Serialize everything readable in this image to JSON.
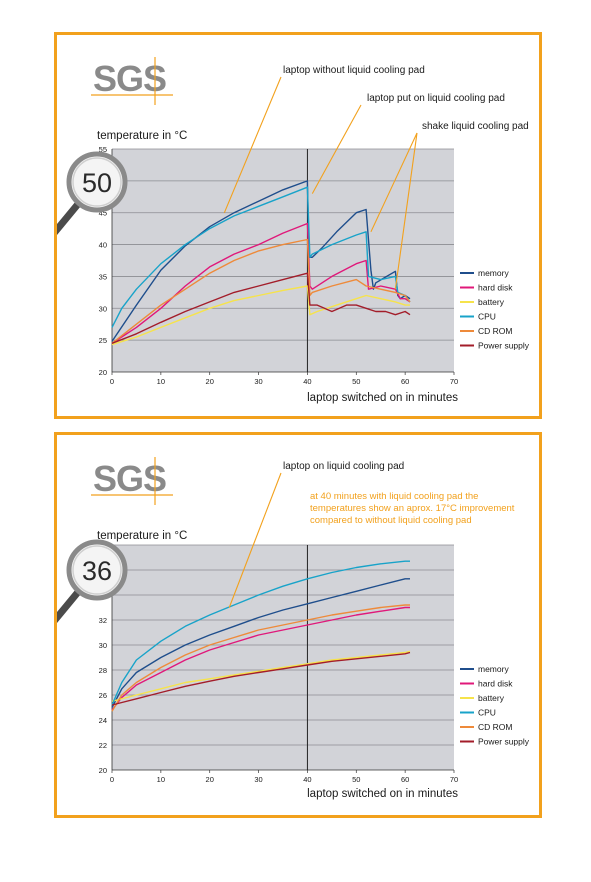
{
  "colors": {
    "frame": "#f2a11d",
    "plot_bg": "#d2d3d8",
    "annotation_line": "#f2a11d",
    "note_text": "#f2a11d",
    "series": {
      "memory": "#1f4e8c",
      "hard disk": "#e0187a",
      "battery": "#f6e34b",
      "CPU": "#18a3c9",
      "CD ROM": "#ee8a3a",
      "Power supply": "#a31d2a"
    }
  },
  "icons": [
    "magnifier-icon"
  ],
  "chart_data": [
    {
      "type": "line",
      "logo": "SGS",
      "magnifier_value": "50",
      "ylabel": "temperature in °C",
      "xlabel": "laptop switched on in minutes",
      "xlim": [
        0,
        70
      ],
      "ylim": [
        20,
        55
      ],
      "xticks": [
        0,
        10,
        20,
        30,
        40,
        50,
        60,
        70
      ],
      "yticks": [
        20,
        25,
        30,
        35,
        40,
        45,
        50,
        55
      ],
      "grid": true,
      "vline_x": 40,
      "legend": "right",
      "annotations": [
        {
          "text": "laptop without liquid cooling pad",
          "target": [
            23,
            45
          ]
        },
        {
          "text": "laptop put on liquid cooling pad",
          "target": [
            41,
            48
          ]
        },
        {
          "text": "shake liquid cooling pad",
          "target": [
            53,
            42
          ]
        },
        {
          "text": "",
          "target": [
            58,
            33
          ]
        }
      ],
      "series": [
        {
          "name": "memory",
          "x": [
            0,
            5,
            10,
            15,
            20,
            25,
            30,
            35,
            40,
            40.3,
            41,
            43,
            46,
            50,
            52,
            53,
            53.5,
            54,
            58,
            58.5,
            59,
            60,
            61
          ],
          "y": [
            24.8,
            30.5,
            36.0,
            39.8,
            42.8,
            45.0,
            46.8,
            48.6,
            50.0,
            38.0,
            38.0,
            39.5,
            42.0,
            45.0,
            45.5,
            36.0,
            33.0,
            34.0,
            35.8,
            32.0,
            31.5,
            32.0,
            31.5
          ]
        },
        {
          "name": "hard disk",
          "x": [
            0,
            5,
            10,
            15,
            20,
            25,
            30,
            35,
            40,
            40.5,
            41,
            45,
            50,
            52,
            52.5,
            55,
            58,
            59,
            60,
            61
          ],
          "y": [
            24.5,
            27.0,
            30.0,
            33.5,
            36.5,
            38.5,
            40.0,
            41.8,
            43.3,
            33.5,
            33.0,
            35.0,
            37.0,
            37.5,
            33.0,
            33.5,
            33.0,
            31.5,
            31.5,
            31.0
          ]
        },
        {
          "name": "battery",
          "x": [
            0,
            5,
            10,
            15,
            20,
            25,
            30,
            35,
            40,
            40.5,
            42,
            46,
            50,
            52,
            55,
            58,
            60,
            61
          ],
          "y": [
            24.3,
            25.5,
            27.0,
            28.5,
            30.0,
            31.2,
            32.0,
            32.8,
            33.5,
            29.0,
            29.5,
            30.5,
            31.5,
            32.0,
            31.5,
            31.0,
            30.5,
            30.5
          ]
        },
        {
          "name": "CPU",
          "x": [
            0,
            2,
            5,
            10,
            15,
            20,
            25,
            30,
            35,
            40,
            40.5,
            41,
            45,
            50,
            52,
            52.5,
            55,
            58,
            58.5,
            60,
            61
          ],
          "y": [
            27.0,
            30.0,
            33.0,
            37.0,
            40.0,
            42.5,
            44.5,
            46.0,
            47.5,
            49.0,
            38.0,
            38.5,
            40.0,
            41.5,
            42.0,
            35.0,
            34.5,
            35.0,
            32.5,
            32.0,
            31.0
          ]
        },
        {
          "name": "CD ROM",
          "x": [
            0,
            5,
            10,
            15,
            20,
            25,
            30,
            35,
            40,
            40.5,
            41,
            45,
            50,
            52,
            55,
            58,
            60,
            61
          ],
          "y": [
            24.5,
            27.5,
            30.5,
            33.0,
            35.5,
            37.5,
            39.0,
            40.0,
            40.8,
            32.0,
            32.5,
            33.5,
            34.5,
            33.5,
            33.0,
            32.5,
            32.0,
            31.0
          ]
        },
        {
          "name": "Power supply",
          "x": [
            0,
            5,
            10,
            15,
            20,
            25,
            30,
            35,
            40,
            40.5,
            42,
            45,
            48,
            50,
            52,
            54,
            56,
            58,
            60,
            61
          ],
          "y": [
            24.5,
            26.0,
            27.8,
            29.5,
            31.0,
            32.5,
            33.5,
            34.5,
            35.5,
            30.5,
            30.5,
            29.5,
            30.5,
            30.5,
            30.0,
            29.5,
            29.5,
            29.0,
            29.5,
            29.0
          ]
        }
      ]
    },
    {
      "type": "line",
      "logo": "SGS",
      "magnifier_value": "36",
      "ylabel": "temperature in °C",
      "xlabel": "laptop switched on in minutes",
      "xlim": [
        0,
        70
      ],
      "ylim": [
        20,
        38
      ],
      "xticks": [
        0,
        10,
        20,
        30,
        40,
        50,
        60,
        70
      ],
      "yticks": [
        20,
        22,
        24,
        26,
        28,
        30,
        32,
        34,
        36,
        38
      ],
      "grid": true,
      "vline_x": 40,
      "legend": "right",
      "note": "at 40 minutes with liquid cooling pad the temperatures show an aprox. 17°C  improvement compared to without liquid cooling pad",
      "annotations": [
        {
          "text": "laptop on liquid cooling pad",
          "target": [
            24,
            33
          ]
        }
      ],
      "series": [
        {
          "name": "memory",
          "x": [
            0,
            2,
            5,
            10,
            15,
            20,
            25,
            30,
            35,
            40,
            45,
            50,
            55,
            60,
            61
          ],
          "y": [
            25.0,
            26.5,
            27.8,
            29.0,
            30.0,
            30.8,
            31.5,
            32.2,
            32.8,
            33.3,
            33.8,
            34.3,
            34.8,
            35.3,
            35.3
          ]
        },
        {
          "name": "hard disk",
          "x": [
            0,
            2,
            5,
            10,
            15,
            20,
            25,
            30,
            35,
            40,
            45,
            50,
            55,
            60,
            61
          ],
          "y": [
            24.8,
            25.8,
            26.8,
            27.8,
            28.8,
            29.6,
            30.2,
            30.8,
            31.2,
            31.6,
            32.0,
            32.4,
            32.7,
            33.0,
            33.0
          ]
        },
        {
          "name": "battery",
          "x": [
            0,
            5,
            10,
            15,
            20,
            25,
            30,
            35,
            40,
            45,
            50,
            55,
            60,
            61
          ],
          "y": [
            25.5,
            26.0,
            26.5,
            27.0,
            27.3,
            27.6,
            27.9,
            28.2,
            28.5,
            28.8,
            29.0,
            29.2,
            29.4,
            29.5
          ]
        },
        {
          "name": "CPU",
          "x": [
            0,
            2,
            5,
            10,
            15,
            20,
            25,
            30,
            35,
            40,
            45,
            50,
            55,
            60,
            61
          ],
          "y": [
            25.2,
            27.0,
            28.8,
            30.3,
            31.5,
            32.4,
            33.2,
            34.0,
            34.7,
            35.3,
            35.8,
            36.2,
            36.5,
            36.7,
            36.7
          ]
        },
        {
          "name": "CD ROM",
          "x": [
            0,
            2,
            5,
            10,
            15,
            20,
            25,
            30,
            35,
            40,
            45,
            50,
            55,
            60,
            61
          ],
          "y": [
            24.7,
            26.0,
            27.0,
            28.2,
            29.2,
            30.0,
            30.6,
            31.2,
            31.6,
            32.0,
            32.4,
            32.7,
            33.0,
            33.2,
            33.2
          ]
        },
        {
          "name": "Power supply",
          "x": [
            0,
            5,
            10,
            15,
            20,
            25,
            30,
            35,
            40,
            45,
            50,
            55,
            60,
            61
          ],
          "y": [
            25.2,
            25.7,
            26.2,
            26.7,
            27.1,
            27.5,
            27.8,
            28.1,
            28.4,
            28.7,
            28.9,
            29.1,
            29.3,
            29.4
          ]
        }
      ]
    }
  ]
}
